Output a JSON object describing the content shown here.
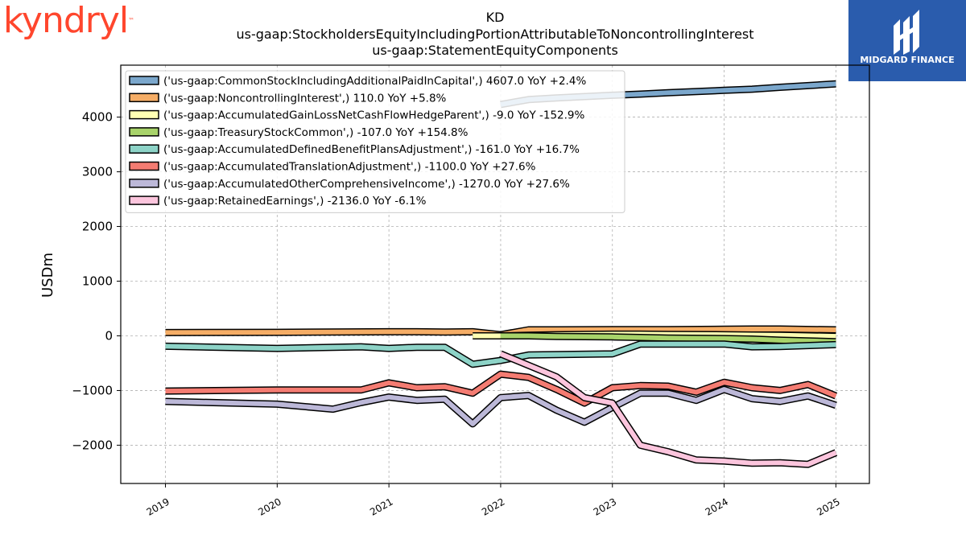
{
  "logos": {
    "left_text": "kyndryl",
    "left_tm": "™",
    "right_text": "MIDGARD FINANCE"
  },
  "chart_data": {
    "type": "line",
    "title_lines": [
      "KD",
      "us-gaap:StockholdersEquityIncludingPortionAttributableToNoncontrollingInterest",
      "us-gaap:StatementEquityComponents"
    ],
    "ylabel": "USDm",
    "xlabel": "",
    "ylim": [
      -2700,
      4950
    ],
    "xlim": [
      2018.6,
      2025.3
    ],
    "yticks": [
      -2000,
      -1000,
      0,
      1000,
      2000,
      3000,
      4000
    ],
    "xticks": [
      2019,
      2020,
      2021,
      2022,
      2023,
      2024,
      2025
    ],
    "grid": true,
    "legend_position": "upper-left",
    "series": [
      {
        "name": "('us-gaap:CommonStockIncludingAdditionalPaidInCapital',) 4607.0 YoY +2.4%",
        "color": "#7ba7cc",
        "points": [
          [
            2022.0,
            4230
          ],
          [
            2022.25,
            4320
          ],
          [
            2022.5,
            4350
          ],
          [
            2023.0,
            4400
          ],
          [
            2023.25,
            4420
          ],
          [
            2023.5,
            4445
          ],
          [
            2024.0,
            4490
          ],
          [
            2024.25,
            4510
          ],
          [
            2024.5,
            4545
          ],
          [
            2025.0,
            4607
          ]
        ]
      },
      {
        "name": "('us-gaap:NoncontrollingInterest',) 110.0 YoY +5.8%",
        "color": "#f5ad66",
        "points": [
          [
            2019.0,
            60
          ],
          [
            2020.0,
            65
          ],
          [
            2021.0,
            75
          ],
          [
            2021.25,
            75
          ],
          [
            2021.5,
            70
          ],
          [
            2021.75,
            75
          ],
          [
            2022.0,
            20
          ],
          [
            2022.25,
            110
          ],
          [
            2022.5,
            110
          ],
          [
            2023.0,
            115
          ],
          [
            2023.25,
            115
          ],
          [
            2023.5,
            115
          ],
          [
            2024.0,
            120
          ],
          [
            2024.25,
            125
          ],
          [
            2024.5,
            125
          ],
          [
            2025.0,
            110
          ]
        ]
      },
      {
        "name": "('us-gaap:AccumulatedGainLossNetCashFlowHedgeParent',) -9.0 YoY -152.9%",
        "color": "#ffffb3",
        "points": [
          [
            2021.75,
            0
          ],
          [
            2022.0,
            0
          ],
          [
            2022.25,
            10
          ],
          [
            2022.5,
            20
          ],
          [
            2023.0,
            30
          ],
          [
            2023.25,
            30
          ],
          [
            2023.5,
            25
          ],
          [
            2024.0,
            20
          ],
          [
            2024.25,
            15
          ],
          [
            2024.5,
            10
          ],
          [
            2025.0,
            -9
          ]
        ]
      },
      {
        "name": "('us-gaap:TreasuryStockCommon',) -107.0 YoY +154.8%",
        "color": "#a8d36a",
        "points": [
          [
            2022.0,
            0
          ],
          [
            2022.25,
            0
          ],
          [
            2022.5,
            -10
          ],
          [
            2023.0,
            -20
          ],
          [
            2023.25,
            -30
          ],
          [
            2023.5,
            -40
          ],
          [
            2024.0,
            -50
          ],
          [
            2024.25,
            -60
          ],
          [
            2024.5,
            -80
          ],
          [
            2025.0,
            -107
          ]
        ]
      },
      {
        "name": "('us-gaap:AccumulatedDefinedBenefitPlansAdjustment',) -161.0 YoY +16.7%",
        "color": "#8dd3c7",
        "points": [
          [
            2019.0,
            -190
          ],
          [
            2020.0,
            -230
          ],
          [
            2020.75,
            -200
          ],
          [
            2021.0,
            -230
          ],
          [
            2021.25,
            -210
          ],
          [
            2021.5,
            -210
          ],
          [
            2021.75,
            -520
          ],
          [
            2022.0,
            -450
          ],
          [
            2022.25,
            -350
          ],
          [
            2023.0,
            -330
          ],
          [
            2023.25,
            -150
          ],
          [
            2023.5,
            -150
          ],
          [
            2024.0,
            -150
          ],
          [
            2024.25,
            -200
          ],
          [
            2024.5,
            -195
          ],
          [
            2025.0,
            -161
          ]
        ]
      },
      {
        "name": "('us-gaap:AccumulatedTranslationAdjustment',) -1100.0 YoY +27.6%",
        "color": "#f47c72",
        "points": [
          [
            2019.0,
            -1010
          ],
          [
            2020.0,
            -990
          ],
          [
            2020.75,
            -990
          ],
          [
            2021.0,
            -860
          ],
          [
            2021.25,
            -950
          ],
          [
            2021.5,
            -930
          ],
          [
            2021.75,
            -1050
          ],
          [
            2022.0,
            -700
          ],
          [
            2022.25,
            -760
          ],
          [
            2022.5,
            -980
          ],
          [
            2022.75,
            -1230
          ],
          [
            2023.0,
            -950
          ],
          [
            2023.25,
            -910
          ],
          [
            2023.5,
            -920
          ],
          [
            2023.75,
            -1030
          ],
          [
            2024.0,
            -850
          ],
          [
            2024.25,
            -950
          ],
          [
            2024.5,
            -1000
          ],
          [
            2024.75,
            -890
          ],
          [
            2025.0,
            -1100
          ]
        ]
      },
      {
        "name": "('us-gaap:AccumulatedOtherComprehensiveIncome',) -1270.0 YoY +27.6%",
        "color": "#bcb8d8",
        "points": [
          [
            2019.0,
            -1200
          ],
          [
            2020.0,
            -1250
          ],
          [
            2020.5,
            -1340
          ],
          [
            2020.75,
            -1220
          ],
          [
            2021.0,
            -1120
          ],
          [
            2021.25,
            -1180
          ],
          [
            2021.5,
            -1160
          ],
          [
            2021.75,
            -1610
          ],
          [
            2022.0,
            -1130
          ],
          [
            2022.25,
            -1090
          ],
          [
            2022.5,
            -1360
          ],
          [
            2022.75,
            -1580
          ],
          [
            2023.0,
            -1310
          ],
          [
            2023.25,
            -1050
          ],
          [
            2023.5,
            -1050
          ],
          [
            2023.75,
            -1180
          ],
          [
            2024.0,
            -980
          ],
          [
            2024.25,
            -1150
          ],
          [
            2024.5,
            -1200
          ],
          [
            2024.75,
            -1100
          ],
          [
            2025.0,
            -1270
          ]
        ]
      },
      {
        "name": "('us-gaap:RetainedEarnings',) -2136.0 YoY -6.1%",
        "color": "#fcc5dd",
        "points": [
          [
            2022.0,
            -330
          ],
          [
            2022.5,
            -750
          ],
          [
            2022.75,
            -1130
          ],
          [
            2023.0,
            -1230
          ],
          [
            2023.25,
            -2000
          ],
          [
            2023.5,
            -2120
          ],
          [
            2023.75,
            -2270
          ],
          [
            2024.0,
            -2290
          ],
          [
            2024.25,
            -2330
          ],
          [
            2024.5,
            -2320
          ],
          [
            2024.75,
            -2350
          ],
          [
            2025.0,
            -2136
          ]
        ]
      }
    ]
  }
}
